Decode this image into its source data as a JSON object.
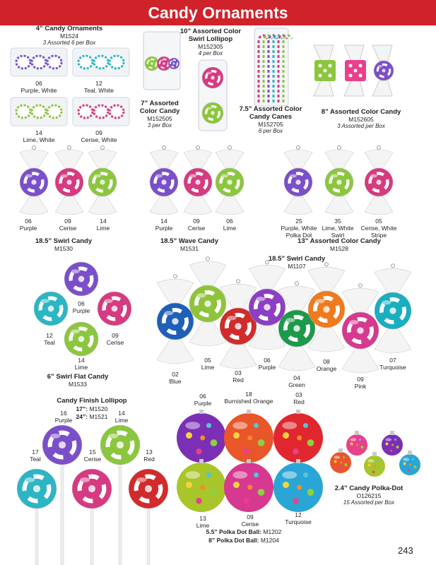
{
  "header": {
    "title": "Candy Ornaments"
  },
  "products": [
    {
      "title": "4” Candy Ornaments",
      "sku": "M1524",
      "note": "3 Assorted 6 per Box",
      "variants": [
        {
          "code": "06",
          "color": "Purple, White"
        },
        {
          "code": "12",
          "color": "Teal, White"
        },
        {
          "code": "14",
          "color": "Lime, White"
        },
        {
          "code": "09",
          "color": "Cerise, White"
        }
      ]
    },
    {
      "title": "10” Assorted Color Swirl Lollipop",
      "sku": "M152305",
      "note": "4 per Box"
    },
    {
      "title": "7” Assorted Color Candy",
      "sku": "M152505",
      "note": "3 per Box"
    },
    {
      "title": "7.5” Assorted Color Candy Canes",
      "sku": "M152705",
      "note": "6 per Box"
    },
    {
      "title": "8” Assorted Color Candy",
      "sku": "M152605",
      "note": "3 Assorted per Box"
    },
    {
      "title": "18.5”  Swirl Candy",
      "sku": "M1530",
      "variants": [
        {
          "code": "06",
          "color": "Purple"
        },
        {
          "code": "09",
          "color": "Cerise"
        },
        {
          "code": "14",
          "color": "Lime"
        }
      ]
    },
    {
      "title": "18.5” Wave Candy",
      "sku": "M1531",
      "variants": [
        {
          "code": "14",
          "color": "Purple"
        },
        {
          "code": "09",
          "color": "Cerise"
        },
        {
          "code": "06",
          "color": "Lime"
        }
      ]
    },
    {
      "title": "13” Assorted Color Candy",
      "sku": "M1528",
      "variants": [
        {
          "code": "25",
          "color": "Purple, White Polka Dot"
        },
        {
          "code": "35",
          "color": "Lime, White Swirl"
        },
        {
          "code": "05",
          "color": "Cerise, White Stripe"
        }
      ]
    },
    {
      "title": "18.5” Swirl Candy",
      "sku": "M1107",
      "variants": [
        {
          "code": "02",
          "color": "Blue"
        },
        {
          "code": "05",
          "color": "Lime"
        },
        {
          "code": "03",
          "color": "Red"
        },
        {
          "code": "06",
          "color": "Purple"
        },
        {
          "code": "04",
          "color": "Green"
        },
        {
          "code": "08",
          "color": "Orange"
        },
        {
          "code": "09",
          "color": "Pink"
        },
        {
          "code": "07",
          "color": "Turquoise"
        }
      ]
    },
    {
      "title": "6” Swirl Flat Candy",
      "sku": "M1533",
      "variants": [
        {
          "code": "06",
          "color": "Purple"
        },
        {
          "code": "12",
          "color": "Teal"
        },
        {
          "code": "09",
          "color": "Cerise"
        },
        {
          "code": "14",
          "color": "Lime"
        }
      ]
    },
    {
      "title": "Candy Finish Lollipop",
      "sizes": [
        {
          "size": "17”:",
          "sku": "M1520"
        },
        {
          "size": "24”:",
          "sku": "M1521"
        }
      ],
      "variants": [
        {
          "code": "16",
          "color": "Purple"
        },
        {
          "code": "14",
          "color": "Lime"
        },
        {
          "code": "17",
          "color": "Teal"
        },
        {
          "code": "15",
          "color": "Cerise"
        },
        {
          "code": "13",
          "color": "Red"
        }
      ]
    },
    {
      "sizes": [
        {
          "size": "5.5” Polka Dot Ball:",
          "sku": "M1202"
        },
        {
          "size": "8” Polka Dot Ball:",
          "sku": "M1204"
        }
      ],
      "variants": [
        {
          "code": "06",
          "color": "Purple"
        },
        {
          "code": "18",
          "color": "Burnished Orange"
        },
        {
          "code": "03",
          "color": "Red"
        },
        {
          "code": "13",
          "color": "Lime"
        },
        {
          "code": "09",
          "color": "Cerise"
        },
        {
          "code": "12",
          "color": "Turquoise"
        }
      ]
    },
    {
      "title": "2.4” Candy Polka-Dot",
      "sku": "O126215",
      "note": "15 Assorted per Box"
    }
  ],
  "page_number": "243"
}
